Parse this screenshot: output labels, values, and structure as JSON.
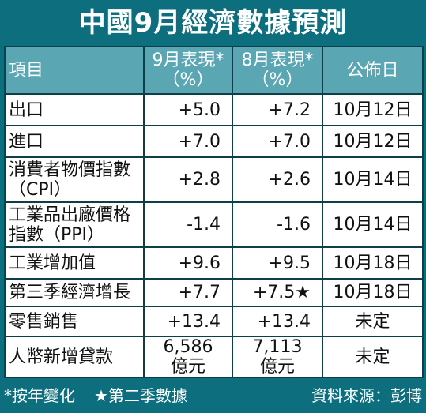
{
  "title": "中國9月經濟數據預測",
  "table": {
    "header": [
      "項目",
      [
        "9月表現*",
        "（%）"
      ],
      [
        "8月表現*",
        "（%）"
      ],
      "公佈日"
    ],
    "rows": [
      [
        "出口",
        "+5.0",
        "+7.2",
        "10月12日"
      ],
      [
        "進口",
        "+7.0",
        "+7.0",
        "10月12日"
      ],
      [
        [
          "消費者物價指數",
          "（CPI）"
        ],
        "+2.8",
        "+2.6",
        "10月14日"
      ],
      [
        [
          "工業品出廠價格",
          "指數（PPI）"
        ],
        "-1.4",
        "-1.6",
        "10月14日"
      ],
      [
        "工業增加值",
        "+9.6",
        "+9.5",
        "10月18日"
      ],
      [
        "第三季經濟增長",
        "+7.7",
        "+7.5★",
        "10月18日"
      ],
      [
        "零售銷售",
        "+13.4",
        "+13.4",
        "未定"
      ],
      [
        "人幣新增貸款",
        [
          "6,586",
          "億元"
        ],
        [
          "7,113",
          "億元"
        ],
        "未定"
      ]
    ]
  },
  "footer": {
    "notes": [
      "*按年變化",
      "★第二季數據"
    ],
    "source": "資料來源：彭博"
  }
}
